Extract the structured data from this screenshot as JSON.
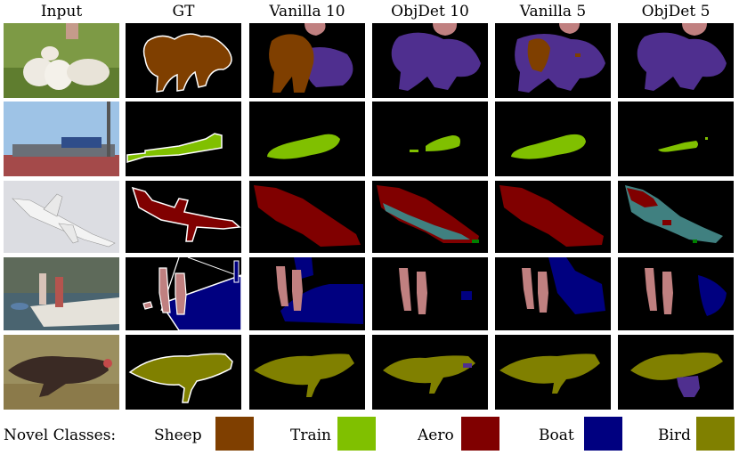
{
  "columns": [
    "Input",
    "GT",
    "Vanilla 10",
    "ObjDet 10",
    "Vanilla 5",
    "ObjDet 5"
  ],
  "legend": {
    "title": "Novel Classes:",
    "items": [
      {
        "label": "Sheep",
        "color": "#7f3f00"
      },
      {
        "label": "Train",
        "color": "#80c000"
      },
      {
        "label": "Aero",
        "color": "#800000"
      },
      {
        "label": "Boat",
        "color": "#000080"
      },
      {
        "label": "Bird",
        "color": "#808000"
      }
    ]
  },
  "colors": {
    "sheep": "#7f3f00",
    "train": "#80c000",
    "aero": "#800000",
    "boat": "#000080",
    "bird": "#808000",
    "person": "#c08080",
    "cow_confusion": "#4f2f8f",
    "teal_confusion": "#408080",
    "green_confusion": "#008000",
    "boundary": "#ffffff"
  }
}
